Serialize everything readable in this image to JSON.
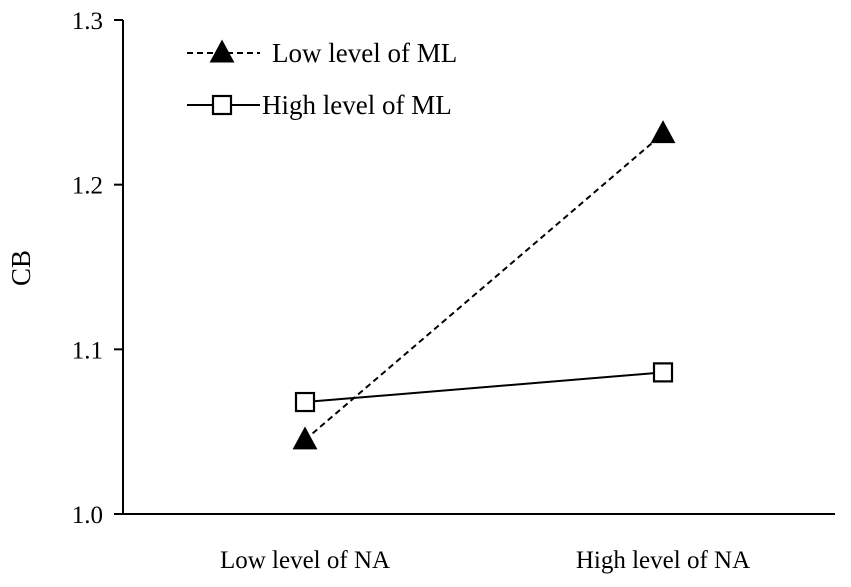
{
  "chart_data": {
    "type": "line",
    "title": "",
    "xlabel": "",
    "ylabel": "CB",
    "categories": [
      "Low level of NA",
      "High level of NA"
    ],
    "ylim": [
      1.0,
      1.3
    ],
    "yticks": [
      "1.0",
      "1.1",
      "1.2",
      "1.3"
    ],
    "grid": false,
    "legend_position": "top-left",
    "series": [
      {
        "name": "Low level of ML",
        "values": [
          1.045,
          1.231
        ],
        "line_style": "dashed",
        "marker": "filled-triangle",
        "color": "#000000"
      },
      {
        "name": "High level of ML",
        "values": [
          1.068,
          1.086
        ],
        "line_style": "solid",
        "marker": "open-square",
        "color": "#000000"
      }
    ]
  }
}
